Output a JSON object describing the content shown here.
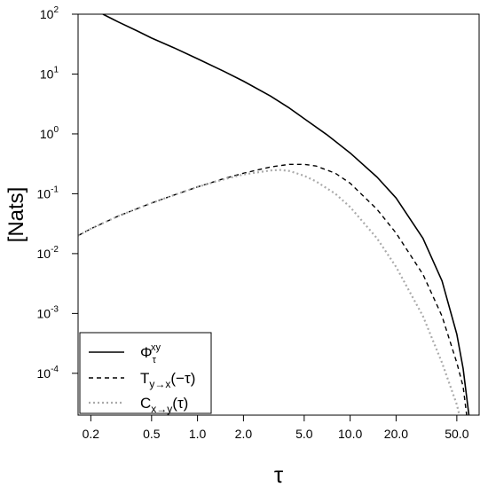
{
  "chart_data": {
    "type": "line",
    "title": "",
    "xlabel": "τ",
    "ylabel": "[Nats]",
    "xscale": "log",
    "yscale": "log",
    "xlim": [
      0.165,
      70
    ],
    "ylim": [
      2e-05,
      100
    ],
    "grid": false,
    "legend_position": "bottom-left",
    "x_ticks": [
      0.2,
      0.5,
      1.0,
      2.0,
      5.0,
      10.0,
      20.0,
      50.0
    ],
    "x_tick_labels": [
      "0.2",
      "0.5",
      "1.0",
      "2.0",
      "5.0",
      "10.0",
      "20.0",
      "50.0"
    ],
    "y_ticks": [
      {
        "value": 100,
        "base": "10",
        "exp": "2"
      },
      {
        "value": 10,
        "base": "10",
        "exp": "1"
      },
      {
        "value": 1,
        "base": "10",
        "exp": "0"
      },
      {
        "value": 0.1,
        "base": "10",
        "exp": "-1"
      },
      {
        "value": 0.01,
        "base": "10",
        "exp": "-2"
      },
      {
        "value": 0.001,
        "base": "10",
        "exp": "-3"
      },
      {
        "value": 0.0001,
        "base": "10",
        "exp": "-4"
      }
    ],
    "series": [
      {
        "name": "Φτxy",
        "label_main": "Φ",
        "label_sub": "τ",
        "label_sup": "xy",
        "style": "solid",
        "color": "#000000",
        "points": [
          [
            0.24,
            100
          ],
          [
            0.3,
            75
          ],
          [
            0.4,
            53
          ],
          [
            0.5,
            40
          ],
          [
            0.7,
            27.5
          ],
          [
            1.0,
            18
          ],
          [
            1.5,
            11
          ],
          [
            2.0,
            7.6
          ],
          [
            3.0,
            4.3
          ],
          [
            4.0,
            2.7
          ],
          [
            5.0,
            1.8
          ],
          [
            7.0,
            0.98
          ],
          [
            10.0,
            0.48
          ],
          [
            15.0,
            0.19
          ],
          [
            20.0,
            0.085
          ],
          [
            30.0,
            0.018
          ],
          [
            40.0,
            0.0035
          ],
          [
            50.0,
            0.00045
          ],
          [
            55.0,
            0.00012
          ],
          [
            60.0,
            2e-05
          ]
        ]
      },
      {
        "name": "Ty→x(−τ)",
        "label_main": "T",
        "label_sub": "y→x",
        "label_after": "(−τ)",
        "style": "dashed",
        "color": "#000000",
        "points": [
          [
            0.165,
            0.02
          ],
          [
            0.2,
            0.026
          ],
          [
            0.3,
            0.042
          ],
          [
            0.5,
            0.07
          ],
          [
            0.7,
            0.095
          ],
          [
            1.0,
            0.13
          ],
          [
            1.5,
            0.18
          ],
          [
            2.0,
            0.22
          ],
          [
            3.0,
            0.28
          ],
          [
            4.0,
            0.31
          ],
          [
            5.0,
            0.31
          ],
          [
            6.0,
            0.29
          ],
          [
            8.0,
            0.22
          ],
          [
            10.0,
            0.15
          ],
          [
            15.0,
            0.055
          ],
          [
            20.0,
            0.022
          ],
          [
            30.0,
            0.0045
          ],
          [
            40.0,
            0.0009
          ],
          [
            50.0,
            0.00015
          ],
          [
            55.0,
            6e-05
          ],
          [
            58.0,
            2e-05
          ]
        ]
      },
      {
        "name": "Cx→y(τ)",
        "label_main": "C",
        "label_sub": "x→y",
        "label_after": "(τ)",
        "style": "dotted",
        "color": "#aaaaaa",
        "points": [
          [
            0.165,
            0.02
          ],
          [
            0.2,
            0.026
          ],
          [
            0.3,
            0.042
          ],
          [
            0.5,
            0.07
          ],
          [
            0.7,
            0.095
          ],
          [
            1.0,
            0.13
          ],
          [
            1.5,
            0.175
          ],
          [
            2.0,
            0.21
          ],
          [
            3.0,
            0.245
          ],
          [
            3.5,
            0.25
          ],
          [
            4.0,
            0.24
          ],
          [
            5.0,
            0.2
          ],
          [
            6.0,
            0.16
          ],
          [
            8.0,
            0.1
          ],
          [
            10.0,
            0.06
          ],
          [
            15.0,
            0.018
          ],
          [
            20.0,
            0.006
          ],
          [
            30.0,
            0.0009
          ],
          [
            40.0,
            0.00015
          ],
          [
            50.0,
            3e-05
          ],
          [
            52.0,
            2e-05
          ]
        ]
      }
    ]
  }
}
